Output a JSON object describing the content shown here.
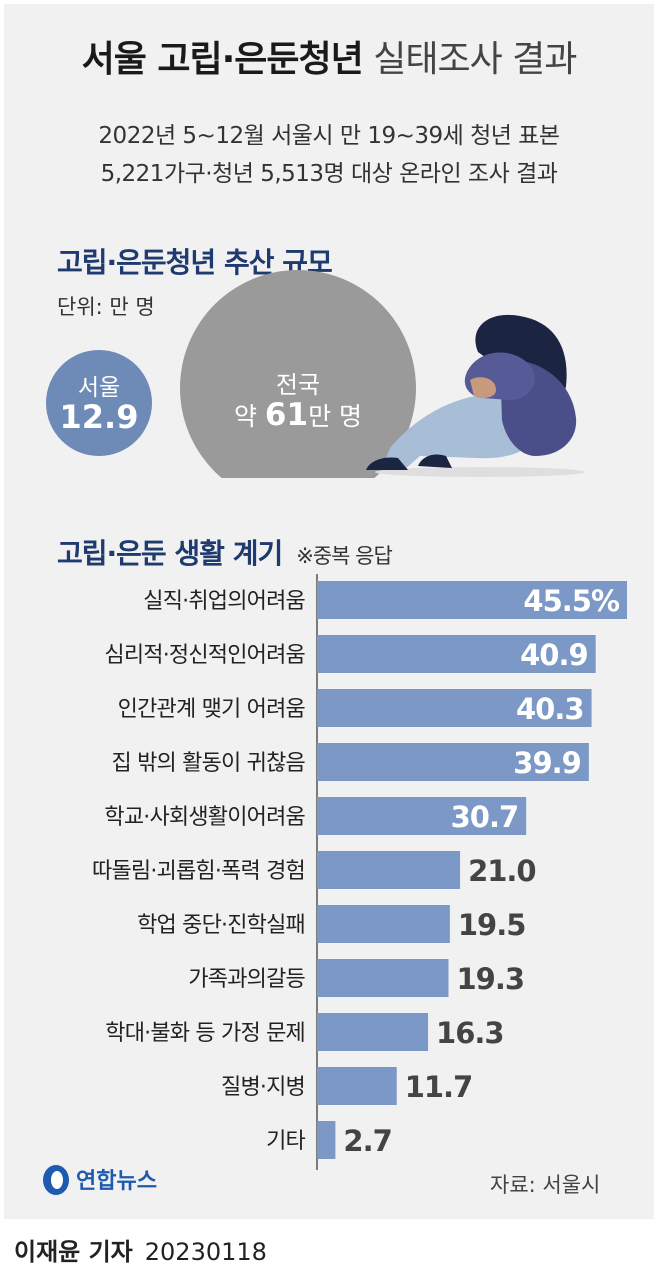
{
  "header": {
    "title_bold": "서울 고립·은둔청년",
    "title_light": "실태조사 결과",
    "subtitle_line1": "2022년 5~12월 서울시 만 19~39세 청년 표본",
    "subtitle_line2": "5,221가구·청년 5,513명 대상 온라인 조사 결과"
  },
  "estimate": {
    "heading": "고립·은둔청년 추산 규모",
    "unit": "단위: 만 명",
    "seoul_label": "서울",
    "seoul_value": "12.9",
    "nation_label": "전국",
    "nation_prefix": "약 ",
    "nation_value": "61",
    "nation_suffix": "만 명"
  },
  "reasons": {
    "heading": "고립·은둔 생활 계기",
    "note": "※중복 응답"
  },
  "chart_data": {
    "type": "bar",
    "orientation": "horizontal",
    "categories": [
      "실직·취업의어려움",
      "심리적·정신적인어려움",
      "인간관계 맺기 어려움",
      "집 밖의 활동이 귀찮음",
      "학교·사회생활이어려움",
      "따돌림·괴롭힘·폭력 경험",
      "학업 중단·진학실패",
      "가족과의갈등",
      "학대·불화 등 가정 문제",
      "질병·지병",
      "기타"
    ],
    "values": [
      45.5,
      40.9,
      40.3,
      39.9,
      30.7,
      21.0,
      19.5,
      19.3,
      16.3,
      11.7,
      2.7
    ],
    "value_labels": [
      "45.5%",
      "40.9",
      "40.3",
      "39.9",
      "30.7",
      "21.0",
      "19.5",
      "19.3",
      "16.3",
      "11.7",
      "2.7"
    ],
    "xlim": [
      0,
      45.5
    ],
    "bar_color": "#7b98c6",
    "title": "",
    "xlabel": "",
    "ylabel": ""
  },
  "footer": {
    "logo_text": "연합뉴스",
    "source": "자료: 서울시",
    "reporter": "이재윤 기자",
    "date": "20230118"
  },
  "colors": {
    "heading": "#1e3a6e",
    "bar": "#7b98c6",
    "seoul_circle": "#6e8bb8",
    "nation_circle": "#9a9a9a",
    "panel_bg": "#f1f1f1"
  }
}
